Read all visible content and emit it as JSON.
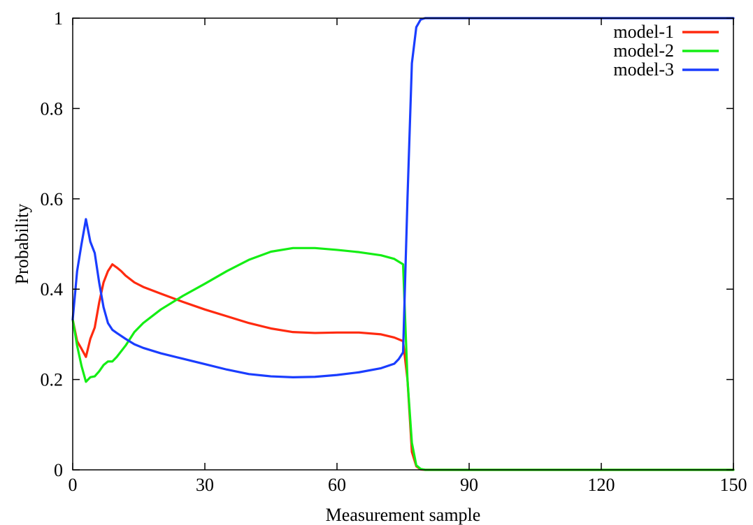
{
  "chart_data": {
    "type": "line",
    "title": "",
    "xlabel": "Measurement sample",
    "ylabel": "Probability",
    "xlim": [
      0,
      150
    ],
    "ylim": [
      0,
      1
    ],
    "xticks": [
      0,
      30,
      60,
      90,
      120,
      150
    ],
    "xtick_labels": [
      "0",
      "30",
      "60",
      "90",
      "120",
      "150"
    ],
    "yticks": [
      0,
      0.2,
      0.4,
      0.6,
      0.8,
      1
    ],
    "ytick_labels": [
      "0",
      "0.2",
      "0.4",
      "0.6",
      "0.8",
      "1"
    ],
    "grid": false,
    "legend_position": "top-right",
    "series": [
      {
        "name": "model-1",
        "color": "#ff2a0f",
        "points": [
          [
            0,
            0.333
          ],
          [
            1,
            0.285
          ],
          [
            2,
            0.268
          ],
          [
            3,
            0.25
          ],
          [
            4,
            0.29
          ],
          [
            5,
            0.315
          ],
          [
            6,
            0.37
          ],
          [
            7,
            0.415
          ],
          [
            8,
            0.44
          ],
          [
            9,
            0.455
          ],
          [
            10,
            0.448
          ],
          [
            11,
            0.44
          ],
          [
            12,
            0.43
          ],
          [
            14,
            0.415
          ],
          [
            16,
            0.405
          ],
          [
            20,
            0.39
          ],
          [
            25,
            0.372
          ],
          [
            30,
            0.355
          ],
          [
            35,
            0.34
          ],
          [
            40,
            0.325
          ],
          [
            45,
            0.313
          ],
          [
            50,
            0.305
          ],
          [
            55,
            0.303
          ],
          [
            60,
            0.304
          ],
          [
            65,
            0.304
          ],
          [
            70,
            0.3
          ],
          [
            73,
            0.293
          ],
          [
            75,
            0.285
          ],
          [
            76,
            0.2
          ],
          [
            77,
            0.04
          ],
          [
            78,
            0.008
          ],
          [
            79,
            0.001
          ],
          [
            80,
            0.0
          ],
          [
            150,
            0.0
          ]
        ]
      },
      {
        "name": "model-2",
        "color": "#14ee14",
        "points": [
          [
            0,
            0.333
          ],
          [
            1,
            0.275
          ],
          [
            2,
            0.23
          ],
          [
            3,
            0.195
          ],
          [
            4,
            0.205
          ],
          [
            5,
            0.207
          ],
          [
            6,
            0.218
          ],
          [
            7,
            0.232
          ],
          [
            8,
            0.24
          ],
          [
            9,
            0.24
          ],
          [
            10,
            0.25
          ],
          [
            12,
            0.275
          ],
          [
            14,
            0.305
          ],
          [
            16,
            0.325
          ],
          [
            20,
            0.355
          ],
          [
            25,
            0.385
          ],
          [
            30,
            0.412
          ],
          [
            35,
            0.44
          ],
          [
            40,
            0.465
          ],
          [
            45,
            0.483
          ],
          [
            50,
            0.491
          ],
          [
            55,
            0.491
          ],
          [
            60,
            0.487
          ],
          [
            65,
            0.482
          ],
          [
            70,
            0.475
          ],
          [
            73,
            0.467
          ],
          [
            75,
            0.455
          ],
          [
            76,
            0.2
          ],
          [
            77,
            0.06
          ],
          [
            78,
            0.01
          ],
          [
            79,
            0.002
          ],
          [
            80,
            0.0
          ],
          [
            150,
            0.0
          ]
        ]
      },
      {
        "name": "model-3",
        "color": "#1a3dff",
        "points": [
          [
            0,
            0.333
          ],
          [
            1,
            0.44
          ],
          [
            2,
            0.5
          ],
          [
            3,
            0.555
          ],
          [
            4,
            0.505
          ],
          [
            5,
            0.48
          ],
          [
            6,
            0.415
          ],
          [
            7,
            0.36
          ],
          [
            8,
            0.325
          ],
          [
            9,
            0.31
          ],
          [
            10,
            0.303
          ],
          [
            12,
            0.29
          ],
          [
            14,
            0.278
          ],
          [
            16,
            0.27
          ],
          [
            20,
            0.258
          ],
          [
            25,
            0.246
          ],
          [
            30,
            0.234
          ],
          [
            35,
            0.222
          ],
          [
            40,
            0.212
          ],
          [
            45,
            0.207
          ],
          [
            50,
            0.205
          ],
          [
            55,
            0.206
          ],
          [
            60,
            0.21
          ],
          [
            65,
            0.216
          ],
          [
            70,
            0.225
          ],
          [
            73,
            0.235
          ],
          [
            74,
            0.245
          ],
          [
            75,
            0.26
          ],
          [
            76,
            0.6
          ],
          [
            77,
            0.9
          ],
          [
            78,
            0.98
          ],
          [
            79,
            0.997
          ],
          [
            80,
            1.0
          ],
          [
            150,
            1.0
          ]
        ]
      }
    ]
  }
}
